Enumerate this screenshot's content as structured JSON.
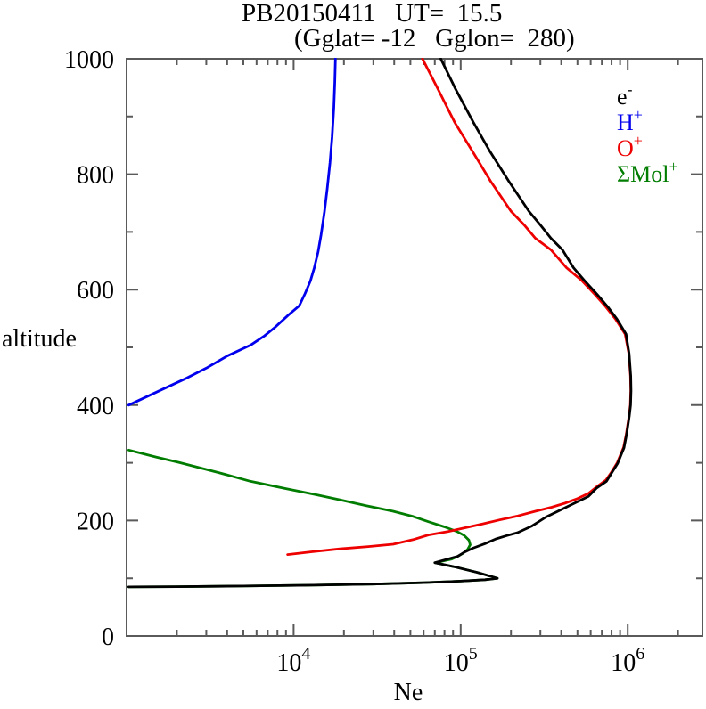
{
  "chart_data": {
    "type": "line",
    "title": "PB20150411   UT=  15.5",
    "subtitle": "(Gglat= -12   Gglon=  280)",
    "xlabel": "Ne",
    "ylabel": "altitude",
    "x_scale": "log",
    "xlim": [
      1000,
      2800000
    ],
    "ylim": [
      0,
      1000
    ],
    "x_major_ticks": [
      {
        "value": 10000,
        "base": "10",
        "exp": "4"
      },
      {
        "value": 100000,
        "base": "10",
        "exp": "5"
      },
      {
        "value": 1000000,
        "base": "10",
        "exp": "6"
      }
    ],
    "y_major_ticks": [
      0,
      200,
      400,
      600,
      800,
      1000
    ],
    "y_minor_ticks": [
      100,
      300,
      500,
      700,
      900
    ],
    "grid": "off",
    "legend_position": "inside-top-right",
    "legend": [
      {
        "base": "e",
        "sup": "-",
        "color": "#000000",
        "series": "electron"
      },
      {
        "base": "H",
        "sup": "+",
        "color": "#0000ee",
        "series": "h-plus"
      },
      {
        "base": "O",
        "sup": "+",
        "color": "#ee0000",
        "series": "o-plus"
      },
      {
        "base": "ΣMol",
        "sup": "+",
        "color": "#007d00",
        "series": "molecular-ions"
      }
    ],
    "series": [
      {
        "name": "molecular-ions",
        "label": "ΣMol+",
        "color": "#007d00",
        "points": [
          [
            1030,
            322
          ],
          [
            1500,
            310
          ],
          [
            2040,
            301
          ],
          [
            3560,
            283
          ],
          [
            5500,
            268
          ],
          [
            9060,
            255
          ],
          [
            13500,
            245
          ],
          [
            18900,
            236
          ],
          [
            27000,
            226
          ],
          [
            39400,
            216
          ],
          [
            52000,
            207
          ],
          [
            64000,
            198
          ],
          [
            80000,
            189
          ],
          [
            95000,
            181
          ],
          [
            105000,
            174
          ],
          [
            112000,
            166
          ],
          [
            114000,
            158
          ],
          [
            110000,
            150
          ],
          [
            103000,
            143
          ],
          [
            96000,
            138
          ],
          [
            88000,
            133
          ],
          [
            76000,
            129
          ],
          [
            70000,
            127
          ],
          [
            91000,
            120
          ],
          [
            126000,
            110
          ],
          [
            166000,
            100
          ],
          [
            140000,
            97.5
          ],
          [
            100000,
            95
          ],
          [
            60000,
            92.5
          ],
          [
            30000,
            90
          ],
          [
            12000,
            88
          ],
          [
            5000,
            86.5
          ],
          [
            2000,
            85.5
          ],
          [
            1030,
            85
          ]
        ]
      },
      {
        "name": "o-plus",
        "label": "O+",
        "color": "#ee0000",
        "points": [
          [
            9200,
            141
          ],
          [
            13000,
            146
          ],
          [
            18900,
            151
          ],
          [
            28000,
            155
          ],
          [
            39400,
            159
          ],
          [
            52000,
            167
          ],
          [
            64000,
            175
          ],
          [
            84000,
            181
          ],
          [
            105000,
            187
          ],
          [
            135000,
            194
          ],
          [
            170000,
            201
          ],
          [
            220000,
            208
          ],
          [
            280000,
            216
          ],
          [
            350000,
            223
          ],
          [
            420000,
            230
          ],
          [
            500000,
            238
          ],
          [
            583000,
            247
          ],
          [
            650000,
            258
          ],
          [
            740000,
            270
          ],
          [
            800000,
            284
          ],
          [
            865000,
            300
          ],
          [
            945000,
            327
          ],
          [
            980000,
            350
          ],
          [
            1018000,
            381
          ],
          [
            1036000,
            400
          ],
          [
            1043000,
            425
          ],
          [
            1039000,
            450
          ],
          [
            1016000,
            489
          ],
          [
            965000,
            523
          ],
          [
            845000,
            549
          ],
          [
            740000,
            570
          ],
          [
            635000,
            592
          ],
          [
            530000,
            616
          ],
          [
            430000,
            638
          ],
          [
            347000,
            669
          ],
          [
            280000,
            689
          ],
          [
            240000,
            712
          ],
          [
            200000,
            736
          ],
          [
            151000,
            788
          ],
          [
            118000,
            839
          ],
          [
            92000,
            890
          ],
          [
            73000,
            948
          ],
          [
            59000,
            1000
          ]
        ]
      },
      {
        "name": "electron",
        "label": "e-",
        "color": "#000000",
        "points": [
          [
            1030,
            85
          ],
          [
            2000,
            85.5
          ],
          [
            5000,
            86.5
          ],
          [
            12000,
            88
          ],
          [
            30000,
            90
          ],
          [
            60000,
            92.5
          ],
          [
            100000,
            95
          ],
          [
            140000,
            97.5
          ],
          [
            166000,
            100
          ],
          [
            126000,
            110
          ],
          [
            91000,
            120
          ],
          [
            70000,
            127
          ],
          [
            96000,
            138
          ],
          [
            105000,
            145
          ],
          [
            118000,
            152
          ],
          [
            140000,
            160
          ],
          [
            162000,
            168
          ],
          [
            190000,
            174
          ],
          [
            219000,
            179
          ],
          [
            265000,
            190
          ],
          [
            324000,
            206
          ],
          [
            448000,
            226
          ],
          [
            583000,
            242
          ],
          [
            650000,
            256
          ],
          [
            746000,
            268
          ],
          [
            800000,
            282
          ],
          [
            870000,
            299
          ],
          [
            950000,
            326
          ],
          [
            985000,
            350
          ],
          [
            1022000,
            381
          ],
          [
            1040000,
            400
          ],
          [
            1047000,
            425
          ],
          [
            1043000,
            450
          ],
          [
            1020000,
            489
          ],
          [
            977000,
            523
          ],
          [
            862000,
            549
          ],
          [
            760000,
            570
          ],
          [
            655000,
            592
          ],
          [
            550000,
            616
          ],
          [
            474000,
            638
          ],
          [
            407000,
            669
          ],
          [
            347000,
            689
          ],
          [
            300000,
            712
          ],
          [
            256000,
            736
          ],
          [
            194000,
            788
          ],
          [
            150000,
            839
          ],
          [
            119000,
            890
          ],
          [
            93000,
            948
          ],
          [
            76000,
            1000
          ]
        ]
      },
      {
        "name": "h-plus",
        "label": "H+",
        "color": "#0000ee",
        "points": [
          [
            1030,
            400
          ],
          [
            1630,
            427
          ],
          [
            2300,
            447
          ],
          [
            3000,
            464
          ],
          [
            4000,
            485
          ],
          [
            5530,
            504
          ],
          [
            6700,
            520
          ],
          [
            7750,
            535
          ],
          [
            9300,
            556
          ],
          [
            10800,
            572
          ],
          [
            11700,
            593
          ],
          [
            12600,
            615
          ],
          [
            13300,
            638
          ],
          [
            14000,
            665
          ],
          [
            14600,
            695
          ],
          [
            15300,
            735
          ],
          [
            15900,
            775
          ],
          [
            16500,
            820
          ],
          [
            17000,
            865
          ],
          [
            17400,
            915
          ],
          [
            17650,
            960
          ],
          [
            17800,
            1000
          ]
        ]
      }
    ]
  }
}
